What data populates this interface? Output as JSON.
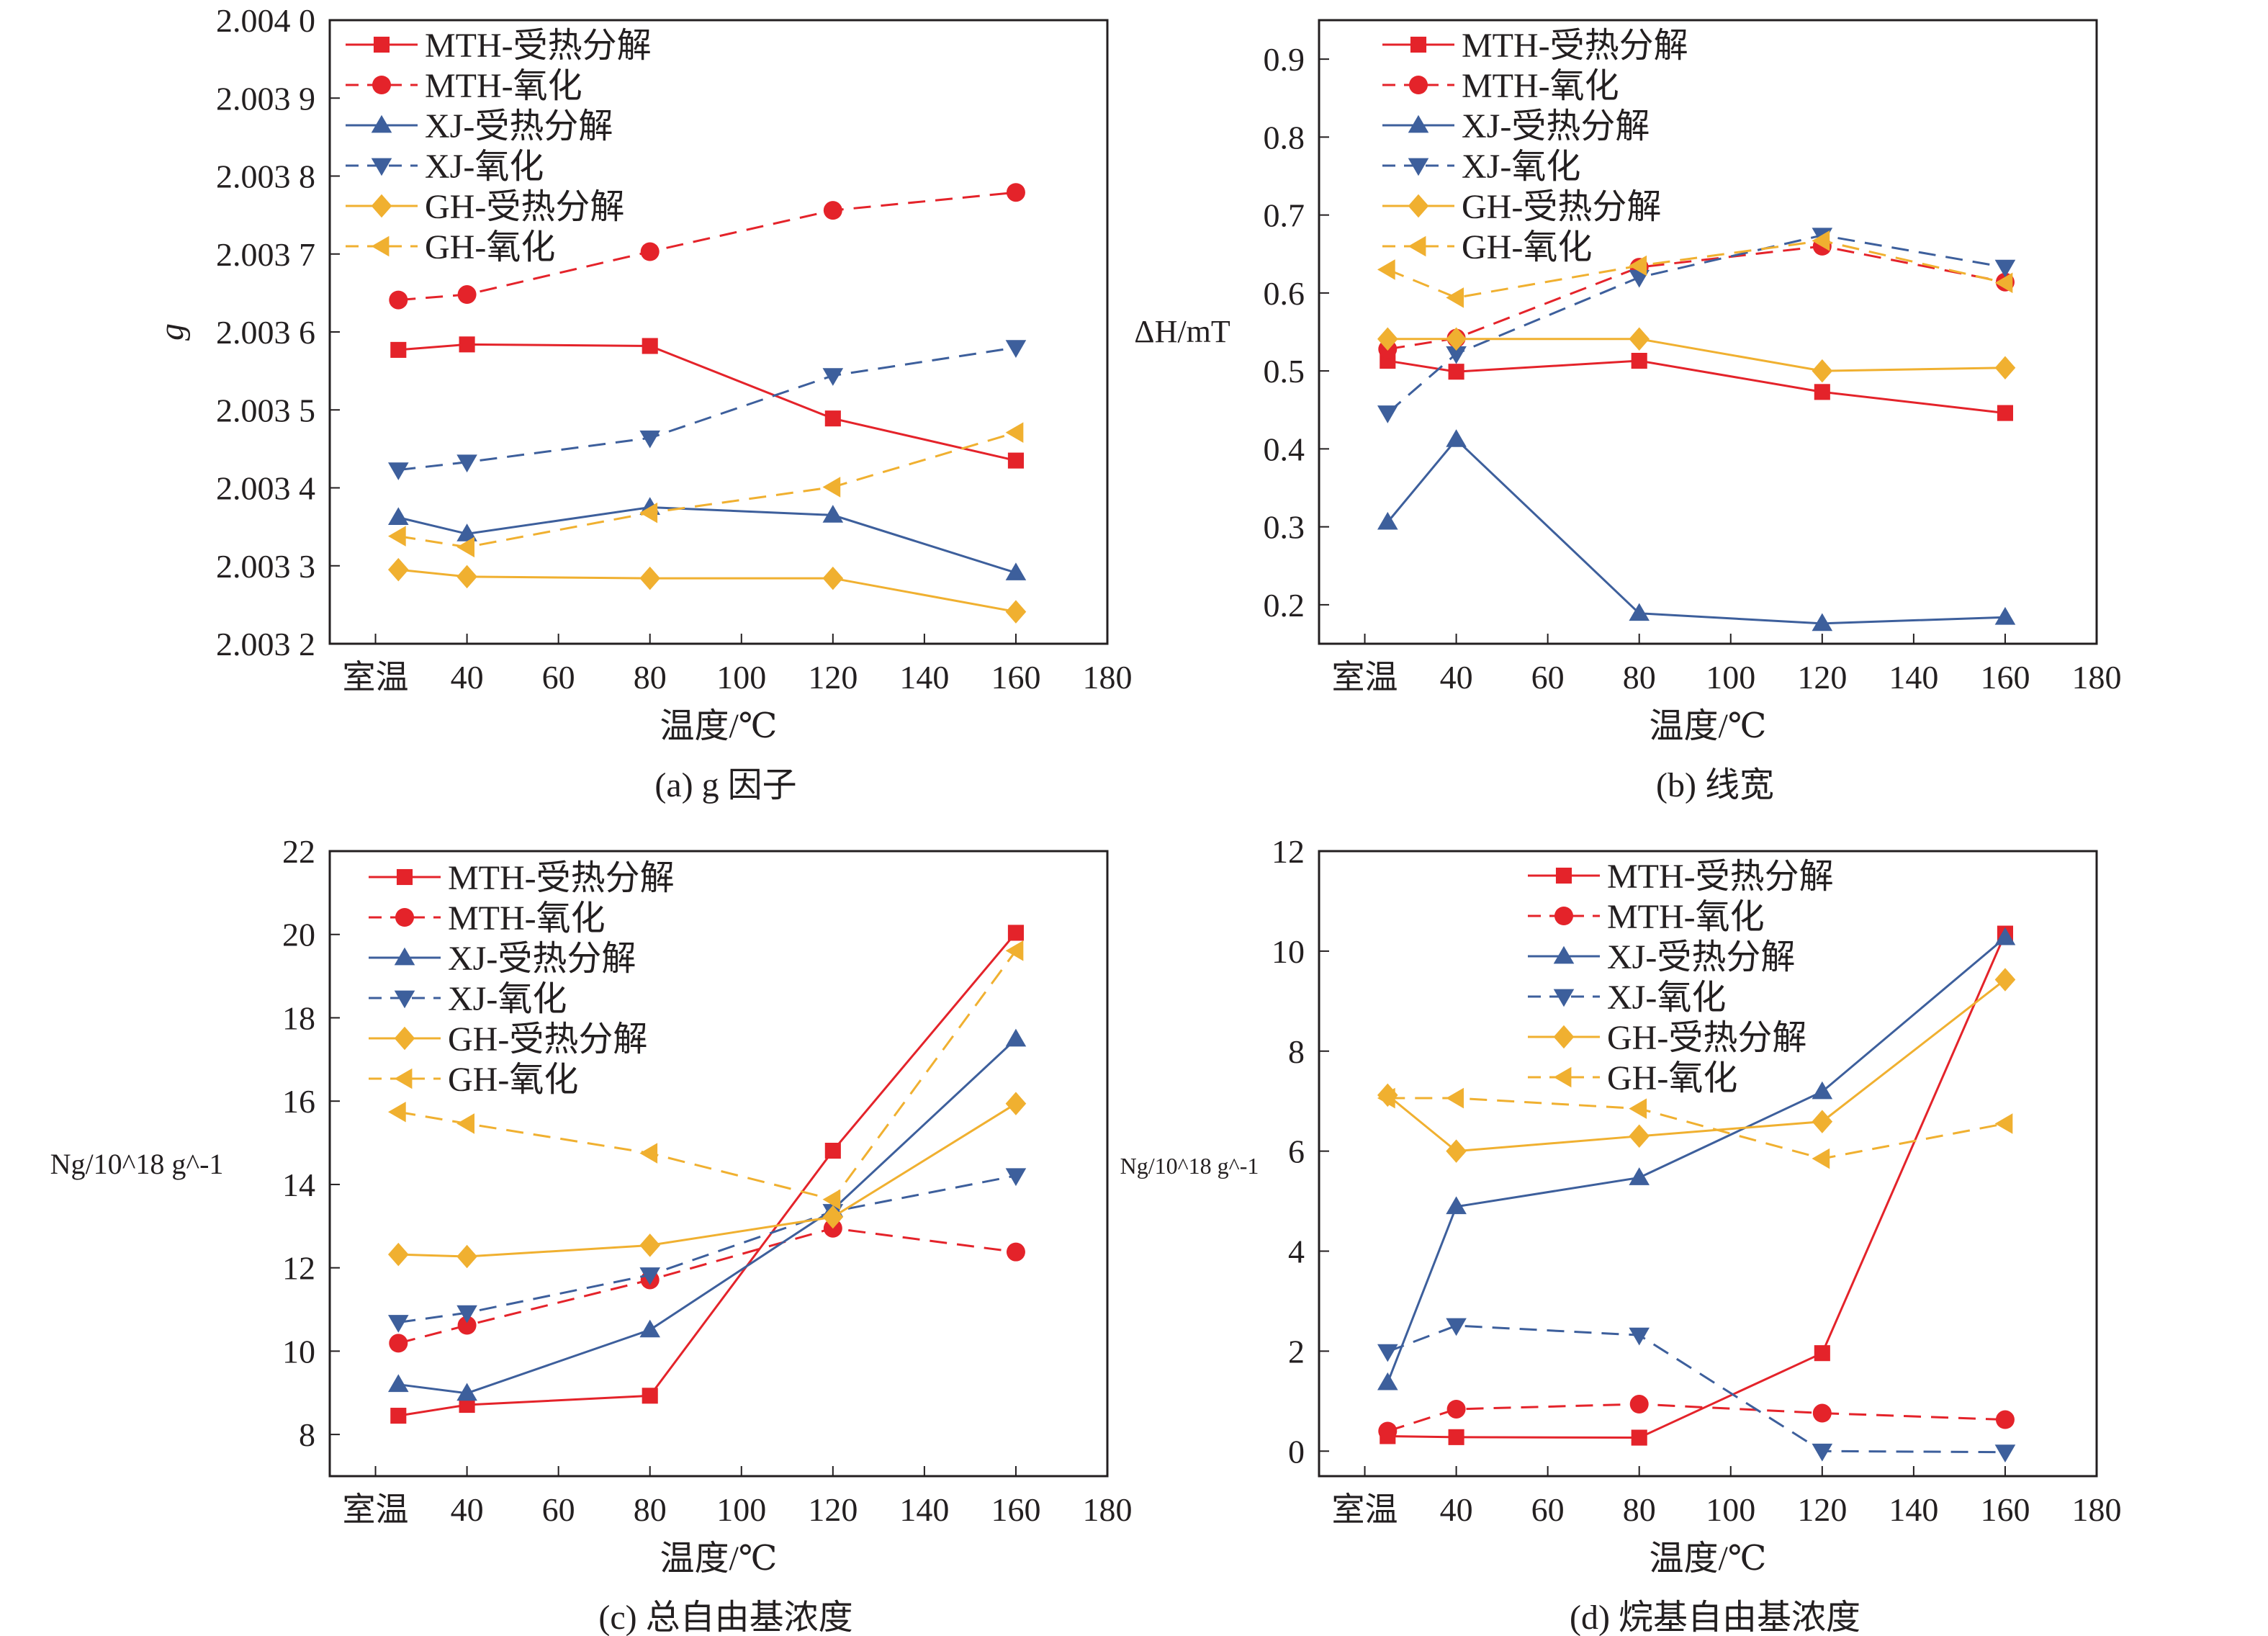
{
  "colors": {
    "MTH": "#e4232a",
    "XJ": "#3d5f9c",
    "GH": "#f0b030",
    "axis": "#231f20"
  },
  "series_styles": [
    {
      "name": "MTH-受热分解",
      "color": "#e4232a",
      "marker": "square",
      "dash": false
    },
    {
      "name": "MTH-氧化",
      "color": "#e4232a",
      "marker": "circle",
      "dash": true
    },
    {
      "name": "XJ-受热分解",
      "color": "#3d5f9c",
      "marker": "triangle-up",
      "dash": false
    },
    {
      "name": "XJ-氧化",
      "color": "#3d5f9c",
      "marker": "triangle-down",
      "dash": true
    },
    {
      "name": "GH-受热分解",
      "color": "#f0b030",
      "marker": "diamond",
      "dash": false
    },
    {
      "name": "GH-氧化",
      "color": "#f0b030",
      "marker": "triangle-left",
      "dash": true
    }
  ],
  "chart_data": [
    {
      "type": "line",
      "caption": "(a) g 因子",
      "xlabel": "温度/℃",
      "ylabel": "g",
      "xlim": [
        10,
        180
      ],
      "ylim": [
        2.0032,
        2.004
      ],
      "x_ticks": [
        20,
        40,
        60,
        80,
        100,
        120,
        140,
        160,
        180
      ],
      "x_tick_labels": [
        "室温",
        "40",
        "60",
        "80",
        "100",
        "120",
        "140",
        "160",
        "180"
      ],
      "y_ticks": [
        2.0032,
        2.0033,
        2.0034,
        2.0035,
        2.0036,
        2.0037,
        2.0038,
        2.0039,
        2.004
      ],
      "y_tick_labels": [
        "2.003 2",
        "2.003 3",
        "2.003 4",
        "2.003 5",
        "2.003 6",
        "2.003 7",
        "2.003 8",
        "2.003 9",
        "2.004 0"
      ],
      "legend": "top-left",
      "grid": false,
      "x": [
        25,
        40,
        80,
        120,
        160
      ],
      "series": [
        {
          "name": "MTH-受热分解",
          "values": [
            2.003577,
            2.003584,
            2.003582,
            2.003489,
            2.003435
          ]
        },
        {
          "name": "MTH-氧化",
          "values": [
            2.003641,
            2.003648,
            2.003703,
            2.003756,
            2.003779
          ]
        },
        {
          "name": "XJ-受热分解",
          "values": [
            2.003362,
            2.003341,
            2.003375,
            2.003365,
            2.003291
          ]
        },
        {
          "name": "XJ-氧化",
          "values": [
            2.003423,
            2.003433,
            2.003464,
            2.003544,
            2.00358
          ]
        },
        {
          "name": "GH-受热分解",
          "values": [
            2.003295,
            2.003286,
            2.003284,
            2.003284,
            2.003241
          ]
        },
        {
          "name": "GH-氧化",
          "values": [
            2.003338,
            2.003324,
            2.003368,
            2.003401,
            2.003471
          ]
        }
      ]
    },
    {
      "type": "line",
      "caption": "(b) 线宽",
      "xlabel": "温度/℃",
      "ylabel": "ΔH/mT",
      "xlim": [
        10,
        180
      ],
      "ylim": [
        0.15,
        0.95
      ],
      "x_ticks": [
        20,
        40,
        60,
        80,
        100,
        120,
        140,
        160,
        180
      ],
      "x_tick_labels": [
        "室温",
        "40",
        "60",
        "80",
        "100",
        "120",
        "140",
        "160",
        "180"
      ],
      "y_ticks": [
        0.2,
        0.3,
        0.4,
        0.5,
        0.6,
        0.7,
        0.8,
        0.9
      ],
      "y_tick_labels": [
        "0.2",
        "0.3",
        "0.4",
        "0.5",
        "0.6",
        "0.7",
        "0.8",
        "0.9"
      ],
      "legend": "top-left",
      "grid": false,
      "x": [
        25,
        40,
        80,
        120,
        160
      ],
      "series": [
        {
          "name": "MTH-受热分解",
          "values": [
            0.513,
            0.499,
            0.513,
            0.473,
            0.446
          ]
        },
        {
          "name": "MTH-氧化",
          "values": [
            0.528,
            0.542,
            0.633,
            0.66,
            0.614
          ]
        },
        {
          "name": "XJ-受热分解",
          "values": [
            0.306,
            0.412,
            0.189,
            0.176,
            0.184
          ]
        },
        {
          "name": "XJ-氧化",
          "values": [
            0.446,
            0.522,
            0.62,
            0.674,
            0.633
          ]
        },
        {
          "name": "GH-受热分解",
          "values": [
            0.541,
            0.541,
            0.541,
            0.5,
            0.504
          ]
        },
        {
          "name": "GH-氧化",
          "values": [
            0.63,
            0.594,
            0.635,
            0.667,
            0.613
          ]
        }
      ]
    },
    {
      "type": "line",
      "caption": "(c) 总自由基浓度",
      "xlabel": "温度/℃",
      "ylabel": "Ng/10^18 g^-1",
      "xlim": [
        10,
        180
      ],
      "ylim": [
        7,
        22
      ],
      "x_ticks": [
        20,
        40,
        60,
        80,
        100,
        120,
        140,
        160,
        180
      ],
      "x_tick_labels": [
        "室温",
        "40",
        "60",
        "80",
        "100",
        "120",
        "140",
        "160",
        "180"
      ],
      "y_ticks": [
        8,
        10,
        12,
        14,
        16,
        18,
        20,
        22
      ],
      "y_tick_labels": [
        "8",
        "10",
        "12",
        "14",
        "16",
        "18",
        "20",
        "22"
      ],
      "legend": "top-left",
      "grid": false,
      "x": [
        25,
        40,
        80,
        120,
        160
      ],
      "series": [
        {
          "name": "MTH-受热分解",
          "values": [
            8.45,
            8.71,
            8.93,
            14.81,
            20.04
          ]
        },
        {
          "name": "MTH-氧化",
          "values": [
            10.19,
            10.62,
            11.71,
            12.95,
            12.38
          ]
        },
        {
          "name": "XJ-受热分解",
          "values": [
            9.2,
            8.99,
            10.51,
            13.4,
            17.49
          ]
        },
        {
          "name": "XJ-氧化",
          "values": [
            10.69,
            10.92,
            11.83,
            13.35,
            14.21
          ]
        },
        {
          "name": "GH-受热分解",
          "values": [
            12.32,
            12.27,
            12.54,
            13.22,
            15.94
          ]
        },
        {
          "name": "GH-氧化",
          "values": [
            15.74,
            15.46,
            14.75,
            13.64,
            19.61
          ]
        }
      ]
    },
    {
      "type": "line",
      "caption": "(d) 烷基自由基浓度",
      "xlabel": "温度/℃",
      "ylabel": "Ng/10^18 g^-1",
      "xlim": [
        10,
        180
      ],
      "ylim": [
        -0.5,
        12
      ],
      "x_ticks": [
        20,
        40,
        60,
        80,
        100,
        120,
        140,
        160,
        180
      ],
      "x_tick_labels": [
        "室温",
        "40",
        "60",
        "80",
        "100",
        "120",
        "140",
        "160",
        "180"
      ],
      "y_ticks": [
        0,
        2,
        4,
        6,
        8,
        10,
        12
      ],
      "y_tick_labels": [
        "0",
        "2",
        "4",
        "6",
        "8",
        "10",
        "12"
      ],
      "legend": "top-center",
      "grid": false,
      "x": [
        25,
        40,
        80,
        120,
        160
      ],
      "series": [
        {
          "name": "MTH-受热分解",
          "values": [
            0.3,
            0.28,
            0.27,
            1.96,
            10.35
          ]
        },
        {
          "name": "MTH-氧化",
          "values": [
            0.4,
            0.84,
            0.94,
            0.76,
            0.63
          ]
        },
        {
          "name": "XJ-受热分解",
          "values": [
            1.37,
            4.89,
            5.47,
            7.19,
            10.27
          ]
        },
        {
          "name": "XJ-氧化",
          "values": [
            1.99,
            2.51,
            2.32,
            0.0,
            -0.02
          ]
        },
        {
          "name": "GH-受热分解",
          "values": [
            7.12,
            6.0,
            6.3,
            6.59,
            9.43
          ]
        },
        {
          "name": "GH-氧化",
          "values": [
            7.06,
            7.06,
            6.85,
            5.85,
            6.55
          ]
        }
      ]
    }
  ]
}
